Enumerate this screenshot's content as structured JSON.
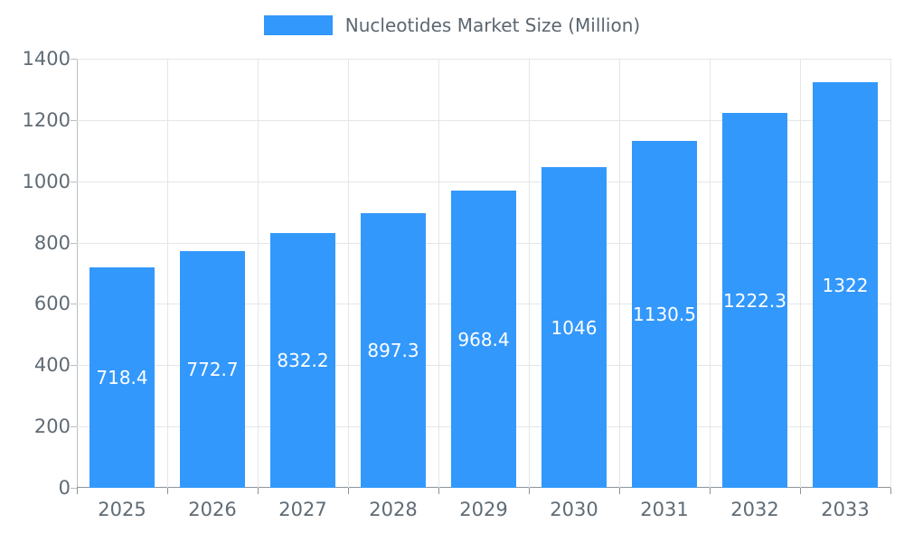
{
  "chart_data": {
    "type": "bar",
    "title": "Nucleotides Market Size (Million)",
    "categories": [
      "2025",
      "2026",
      "2027",
      "2028",
      "2029",
      "2030",
      "2031",
      "2032",
      "2033"
    ],
    "values": [
      718.4,
      772.7,
      832.2,
      897.3,
      968.4,
      1046,
      1130.5,
      1222.3,
      1322
    ],
    "value_labels": [
      "718.4",
      "772.7",
      "832.2",
      "897.3",
      "968.4",
      "1046",
      "1130.5",
      "1222.3",
      "1322"
    ],
    "xlabel": "",
    "ylabel": "",
    "ylim": [
      0,
      1400
    ],
    "ytick_step": 200,
    "ytick_labels": [
      "0",
      "200",
      "400",
      "600",
      "800",
      "1000",
      "1200",
      "1400"
    ],
    "grid": true,
    "legend_position": "top-center",
    "bar_color": "#3398fc",
    "label_color": "#ffffff",
    "grid_color": "#e3e6e8",
    "axis_color": "#8c9399",
    "tick_text_color": "#5f6b75"
  }
}
